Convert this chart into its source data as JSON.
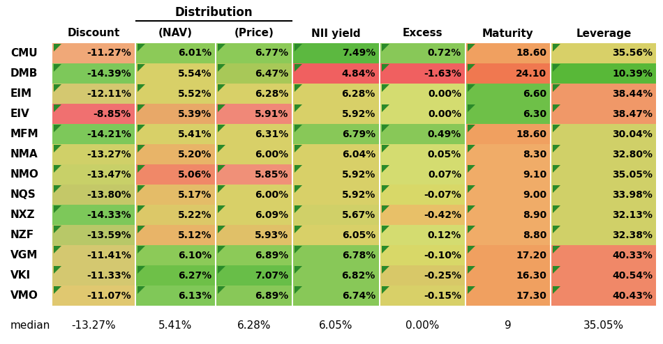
{
  "tickers": [
    "CMU",
    "DMB",
    "EIM",
    "EIV",
    "MFM",
    "NMA",
    "NMO",
    "NQS",
    "NXZ",
    "NZF",
    "VGM",
    "VKI",
    "VMO"
  ],
  "col_headers": [
    "Discount",
    "(NAV)",
    "(Price)",
    "NII yield",
    "Excess",
    "Maturity",
    "Leverage"
  ],
  "dist_header": "Distribution",
  "display": {
    "Discount": [
      "-11.27%",
      "-14.39%",
      "-12.11%",
      "-8.85%",
      "-14.21%",
      "-13.27%",
      "-13.47%",
      "-13.80%",
      "-14.33%",
      "-13.59%",
      "-11.41%",
      "-11.33%",
      "-11.07%"
    ],
    "NAV": [
      "6.01%",
      "5.54%",
      "5.52%",
      "5.39%",
      "5.41%",
      "5.20%",
      "5.06%",
      "5.17%",
      "5.22%",
      "5.12%",
      "6.10%",
      "6.27%",
      "6.13%"
    ],
    "Price": [
      "6.77%",
      "6.47%",
      "6.28%",
      "5.91%",
      "6.31%",
      "6.00%",
      "5.85%",
      "6.00%",
      "6.09%",
      "5.93%",
      "6.89%",
      "7.07%",
      "6.89%"
    ],
    "NII yield": [
      "7.49%",
      "4.84%",
      "6.28%",
      "5.92%",
      "6.79%",
      "6.04%",
      "5.92%",
      "5.92%",
      "5.67%",
      "6.05%",
      "6.78%",
      "6.82%",
      "6.74%"
    ],
    "Excess": [
      "0.72%",
      "-1.63%",
      "0.00%",
      "0.00%",
      "0.49%",
      "0.05%",
      "0.07%",
      "-0.07%",
      "-0.42%",
      "0.12%",
      "-0.10%",
      "-0.25%",
      "-0.15%"
    ],
    "Maturity": [
      "18.60",
      "24.10",
      "6.60",
      "6.30",
      "18.60",
      "8.30",
      "9.10",
      "9.00",
      "8.90",
      "8.80",
      "17.20",
      "16.30",
      "17.30"
    ],
    "Leverage": [
      "35.56%",
      "10.39%",
      "38.44%",
      "38.47%",
      "30.04%",
      "32.80%",
      "35.05%",
      "33.98%",
      "32.13%",
      "32.38%",
      "40.33%",
      "40.54%",
      "40.43%"
    ]
  },
  "cell_colors": {
    "Discount": [
      "#f0a878",
      "#7dc85a",
      "#d4c870",
      "#f07070",
      "#7dc85a",
      "#d0d068",
      "#c8d068",
      "#c4c868",
      "#7dc85a",
      "#b8c868",
      "#d4c870",
      "#d4c870",
      "#e0c870"
    ],
    "NAV": [
      "#8cca58",
      "#d8d068",
      "#d8d068",
      "#e8a868",
      "#d8d068",
      "#e8b468",
      "#f08868",
      "#e4bc68",
      "#dcc868",
      "#e8b468",
      "#8cca58",
      "#6ec048",
      "#80c858"
    ],
    "Price": [
      "#8cca58",
      "#a8c858",
      "#d8d068",
      "#f08878",
      "#d8d068",
      "#d8d068",
      "#f09078",
      "#d8d068",
      "#d8d068",
      "#e0c068",
      "#8cca58",
      "#68be48",
      "#88c858"
    ],
    "NII yield": [
      "#5cb840",
      "#f06060",
      "#d8d068",
      "#d8d068",
      "#88c858",
      "#d8d068",
      "#d8d068",
      "#d8d068",
      "#d0d068",
      "#d8d068",
      "#88c858",
      "#88c858",
      "#88c858"
    ],
    "Excess": [
      "#88c858",
      "#f06060",
      "#d4dc70",
      "#d4dc70",
      "#88c858",
      "#d4dc70",
      "#d4dc70",
      "#d8d868",
      "#e8c068",
      "#d4dc70",
      "#d8d868",
      "#d8c868",
      "#d8d068"
    ],
    "Maturity": [
      "#f0a060",
      "#f07850",
      "#6ec048",
      "#6ec048",
      "#f0a060",
      "#f0ac68",
      "#f0ac68",
      "#f0ac68",
      "#f0ac68",
      "#f0ac68",
      "#f0a060",
      "#f0a060",
      "#f0a060"
    ],
    "Leverage": [
      "#d8d068",
      "#58b838",
      "#f09868",
      "#f09868",
      "#d0d068",
      "#d0d068",
      "#d0d068",
      "#d0d068",
      "#d0d068",
      "#d0d068",
      "#f08868",
      "#f08868",
      "#f08868"
    ]
  },
  "medians": {
    "Discount": "-13.27%",
    "NAV": "5.41%",
    "Price": "6.28%",
    "NII yield": "6.05%",
    "Excess": "0.00%",
    "Maturity": "9",
    "Leverage": "35.05%"
  },
  "bg_color": "#ffffff",
  "tri_color": "#2a8a2a"
}
